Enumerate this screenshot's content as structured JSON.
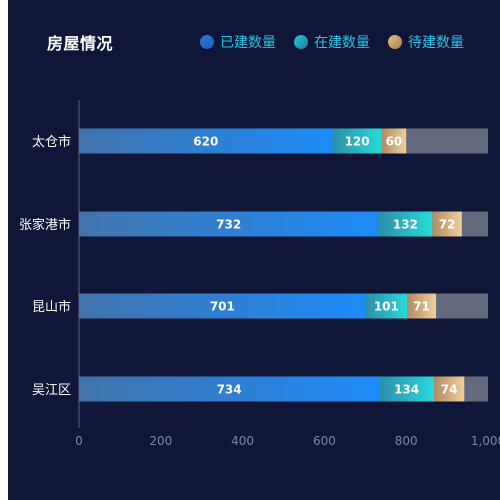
{
  "chart_data": {
    "type": "bar",
    "orientation": "horizontal",
    "stacked": true,
    "title": "房屋情况",
    "categories": [
      "太仓市",
      "张家港市",
      "昆山市",
      "吴江区"
    ],
    "series": [
      {
        "name": "已建数量",
        "values": [
          620,
          732,
          701,
          734
        ]
      },
      {
        "name": "在建数量",
        "values": [
          120,
          132,
          101,
          134
        ]
      },
      {
        "name": "待建数量",
        "values": [
          60,
          72,
          71,
          74
        ]
      }
    ],
    "xlim": [
      0,
      1000
    ],
    "x_ticks": [
      "0",
      "200",
      "400",
      "600",
      "800",
      "1,000"
    ],
    "background_total": 1000,
    "legend_position": "top-right",
    "grid": false
  },
  "colors": {
    "background": "#0f1637",
    "title": "#ffffff",
    "legend_text": "#27c6e6",
    "axis_line": "#5a6285",
    "tick_text": "#7b84a3",
    "category_text": "#ffffff",
    "bar_label": "#ffffff",
    "track": "#646a7e",
    "series_built": [
      "#4273ab",
      "#1c8bf7"
    ],
    "series_building": [
      "#2b8ea9",
      "#2ad9da"
    ],
    "series_planned": [
      "#b08a62",
      "#f0cf9b"
    ],
    "legend_built": [
      "#2e7ad8",
      "#1a5eb4"
    ],
    "legend_building": [
      "#2cc8d2",
      "#1a7f96"
    ],
    "legend_planned": [
      "#e9c38a",
      "#a37c52"
    ]
  }
}
